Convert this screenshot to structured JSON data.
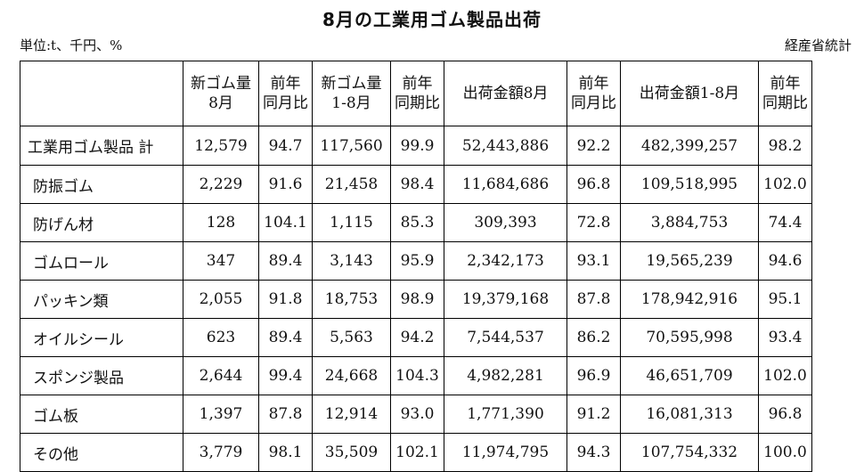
{
  "title": "8月の工業用ゴム製品出荷",
  "unit": "単位:t、千円、%",
  "source": "経産省統計",
  "headers": [
    [
      ""
    ],
    [
      "新ゴム量",
      "8月"
    ],
    [
      "前年",
      "同月比"
    ],
    [
      "新ゴム量",
      "1-8月"
    ],
    [
      "前年",
      "同期比"
    ],
    [
      "出荷金額8月"
    ],
    [
      "前年",
      "同月比"
    ],
    [
      "出荷金額1-8月"
    ],
    [
      "前年",
      "同期比"
    ]
  ],
  "rows": [
    [
      "工業用ゴム製品 計",
      "12,579",
      "94.7",
      "117,560",
      "99.9",
      "52,443,886",
      "92.2",
      "482,399,257",
      "98.2"
    ],
    [
      "防振ゴム",
      "2,229",
      "91.6",
      "21,458",
      "98.4",
      "11,684,686",
      "96.8",
      "109,518,995",
      "102.0"
    ],
    [
      "防げん材",
      "128",
      "104.1",
      "1,115",
      "85.3",
      "309,393",
      "72.8",
      "3,884,753",
      "74.4"
    ],
    [
      "ゴムロール",
      "347",
      "89.4",
      "3,143",
      "95.9",
      "2,342,173",
      "93.1",
      "19,565,239",
      "94.6"
    ],
    [
      "パッキン類",
      "2,055",
      "91.8",
      "18,753",
      "98.9",
      "19,379,168",
      "87.8",
      "178,942,916",
      "95.1"
    ],
    [
      "オイルシール",
      "623",
      "89.4",
      "5,563",
      "94.2",
      "7,544,537",
      "86.2",
      "70,595,998",
      "93.4"
    ],
    [
      "スポンジ製品",
      "2,644",
      "99.4",
      "24,668",
      "104.3",
      "4,982,281",
      "96.9",
      "46,651,709",
      "102.0"
    ],
    [
      "ゴム板",
      "1,397",
      "87.8",
      "12,914",
      "93.0",
      "1,771,390",
      "91.2",
      "16,081,313",
      "96.8"
    ],
    [
      "その他",
      "3,779",
      "98.1",
      "35,509",
      "102.1",
      "11,974,795",
      "94.3",
      "107,754,332",
      "100.0"
    ]
  ]
}
